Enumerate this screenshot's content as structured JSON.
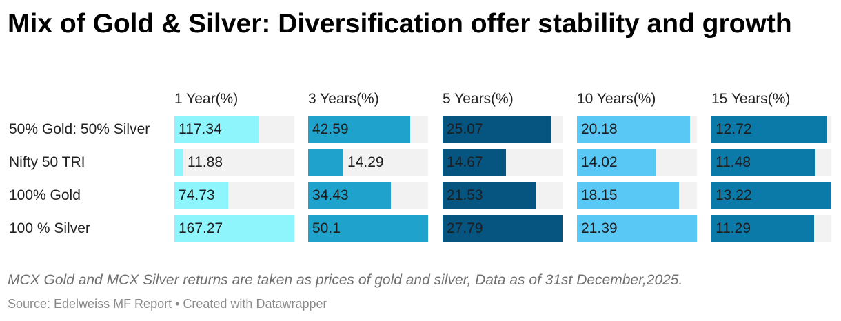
{
  "title": "Mix of Gold & Silver: Diversification offer stability and growth",
  "note": "MCX Gold and MCX Silver returns are taken as prices of gold and silver, Data as of 31st December,2025.",
  "source": "Source: Edelweiss MF Report • Created with Datawrapper",
  "chart_data": {
    "type": "bar",
    "categories": [
      "50% Gold: 50% Silver",
      "Nifty 50 TRI",
      "100% Gold",
      "100 % Silver"
    ],
    "series": [
      {
        "name": "1 Year(%)",
        "color": "#8ef5fc",
        "values": [
          117.34,
          11.88,
          74.73,
          167.27
        ]
      },
      {
        "name": "3 Years(%)",
        "color": "#1fa3cc",
        "values": [
          42.59,
          14.29,
          34.43,
          50.1
        ]
      },
      {
        "name": "5 Years(%)",
        "color": "#065480",
        "values": [
          25.07,
          14.67,
          21.53,
          27.79
        ]
      },
      {
        "name": "10 Years(%)",
        "color": "#5ac8f5",
        "values": [
          20.18,
          14.02,
          18.15,
          21.39
        ]
      },
      {
        "name": "15 Years(%)",
        "color": "#0b7aa8",
        "values": [
          12.72,
          11.48,
          13.22,
          11.29
        ]
      }
    ]
  }
}
